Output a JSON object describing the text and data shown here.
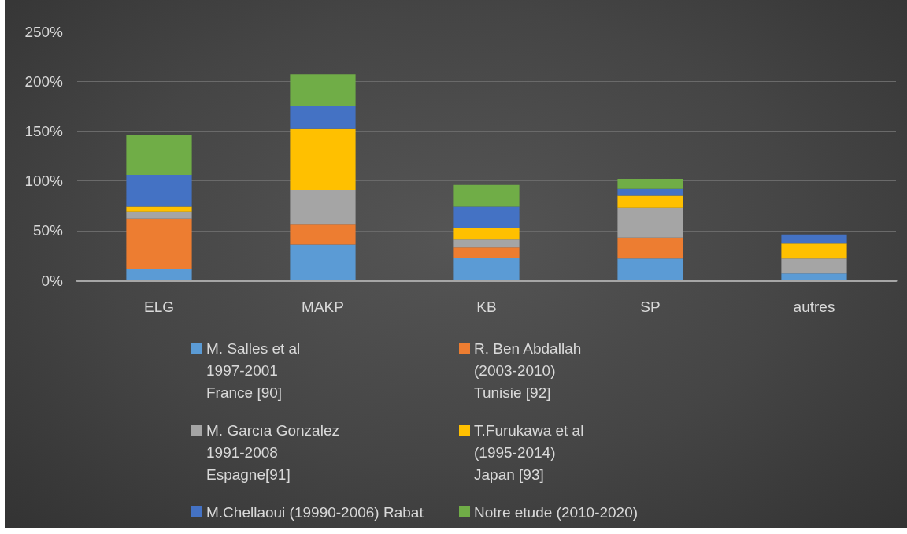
{
  "chart_data": {
    "type": "bar",
    "categories": [
      "ELG",
      "MAKP",
      "KB",
      "SP",
      "autres"
    ],
    "stacked": true,
    "series": [
      {
        "name": "M. Salles et al\n1997-2001\nFrance [90]",
        "color": "#5b9bd5",
        "values": [
          11,
          36,
          23,
          22,
          7
        ]
      },
      {
        "name": "R. Ben Abdallah\n(2003-2010)\nTunisie [92]",
        "color": "#ed7d31",
        "values": [
          51,
          20,
          10,
          21,
          null
        ]
      },
      {
        "name": "M. Garcıa Gonzalez\n1991-2008\nEspagne[91]",
        "color": "#a5a5a5",
        "values": [
          7,
          35,
          8,
          30,
          15
        ]
      },
      {
        "name": "T.Furukawa et al\n(1995-2014)\nJapan [93]",
        "color": "#ffc000",
        "values": [
          5,
          61,
          12,
          12,
          15
        ]
      },
      {
        "name": "M.Chellaoui (19990-2006) Rabat",
        "color": "#4472c4",
        "values": [
          32,
          23,
          21,
          7,
          9
        ]
      },
      {
        "name": "Notre etude (2010-2020)",
        "color": "#70ad47",
        "values": [
          40,
          32,
          22,
          10,
          null
        ]
      }
    ],
    "ylim": [
      0,
      250
    ],
    "yticks": [
      {
        "value": 0,
        "label": "0%"
      },
      {
        "value": 50,
        "label": "50%"
      },
      {
        "value": 100,
        "label": "100%"
      },
      {
        "value": 150,
        "label": "150%"
      },
      {
        "value": 200,
        "label": "200%"
      },
      {
        "value": 250,
        "label": "250%"
      }
    ],
    "grid": "y",
    "legend": "bottom"
  }
}
